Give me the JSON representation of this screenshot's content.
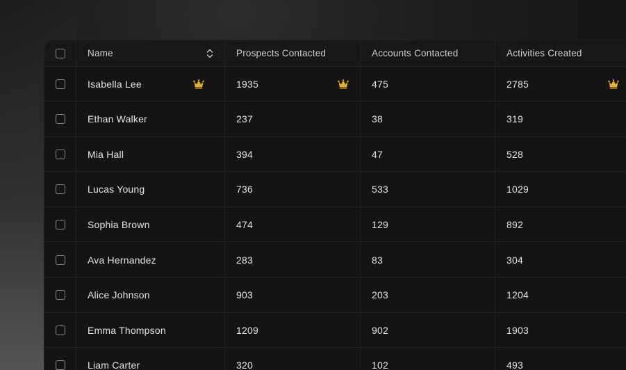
{
  "colors": {
    "crown": "#E8B21B",
    "text": "#E4E4E4",
    "header_text": "#CFCFCF",
    "card_bg": "#141414"
  },
  "table": {
    "columns": [
      "Name",
      "Prospects Contacted",
      "Accounts Contacted",
      "Activities Created"
    ],
    "sort_icon": "chevron-up-down-icon",
    "crown_icon": "crown-icon",
    "rows": [
      {
        "name": "Isabella Lee",
        "prospects": "1935",
        "accounts": "475",
        "activities": "2785",
        "top": true
      },
      {
        "name": "Ethan Walker",
        "prospects": "237",
        "accounts": "38",
        "activities": "319",
        "top": false
      },
      {
        "name": "Mia Hall",
        "prospects": "394",
        "accounts": "47",
        "activities": "528",
        "top": false
      },
      {
        "name": "Lucas Young",
        "prospects": "736",
        "accounts": "533",
        "activities": "1029",
        "top": false
      },
      {
        "name": "Sophia Brown",
        "prospects": "474",
        "accounts": "129",
        "activities": "892",
        "top": false
      },
      {
        "name": "Ava Hernandez",
        "prospects": "283",
        "accounts": "83",
        "activities": "304",
        "top": false
      },
      {
        "name": "Alice Johnson",
        "prospects": "903",
        "accounts": "203",
        "activities": "1204",
        "top": false
      },
      {
        "name": "Emma Thompson",
        "prospects": "1209",
        "accounts": "902",
        "activities": "1903",
        "top": false
      },
      {
        "name": "Liam Carter",
        "prospects": "320",
        "accounts": "102",
        "activities": "493",
        "top": false
      }
    ]
  }
}
